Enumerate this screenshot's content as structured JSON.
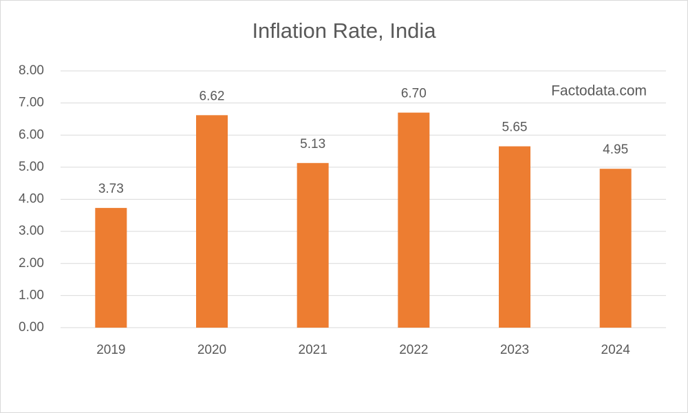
{
  "chart_data": {
    "type": "bar",
    "title": "Inflation Rate, India",
    "annotation": "Factodata.com",
    "categories": [
      "2019",
      "2020",
      "2021",
      "2022",
      "2023",
      "2024"
    ],
    "values": [
      3.73,
      6.62,
      5.13,
      6.7,
      5.65,
      4.95
    ],
    "value_labels": [
      "3.73",
      "6.62",
      "5.13",
      "6.70",
      "5.65",
      "4.95"
    ],
    "color": "#ed7d31",
    "ylim": [
      0,
      8
    ],
    "yticks": [
      {
        "value": 0,
        "label": "0.00"
      },
      {
        "value": 1,
        "label": "1.00"
      },
      {
        "value": 2,
        "label": "2.00"
      },
      {
        "value": 3,
        "label": "3.00"
      },
      {
        "value": 4,
        "label": "4.00"
      },
      {
        "value": 5,
        "label": "5.00"
      },
      {
        "value": 6,
        "label": "6.00"
      },
      {
        "value": 7,
        "label": "7.00"
      },
      {
        "value": 8,
        "label": "8.00"
      }
    ],
    "grid": true
  }
}
